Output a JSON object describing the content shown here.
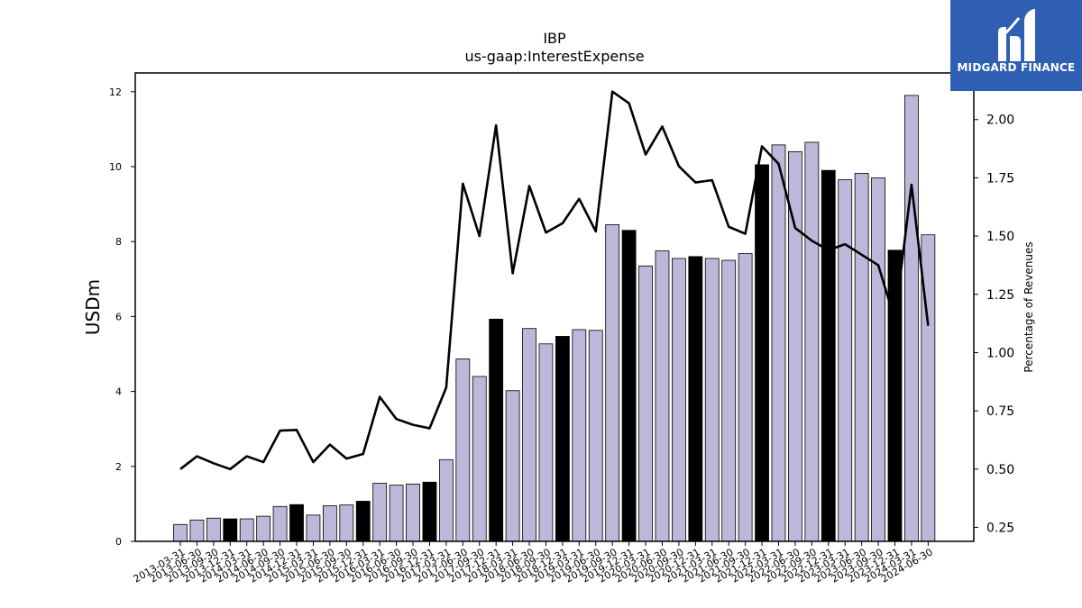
{
  "chart_data": {
    "type": "bar",
    "title": "IBP",
    "subtitle": "us-gaap:InterestExpense",
    "ylabel": "USDm",
    "y2label": "Percentage of Revenues",
    "ylim": [
      0,
      12.5
    ],
    "y2lim": [
      0.19,
      2.2
    ],
    "yticks": [
      0,
      2,
      4,
      6,
      8,
      10,
      12
    ],
    "y2ticks": [
      "0.25",
      "0.50",
      "0.75",
      "1.00",
      "1.25",
      "1.50",
      "1.75",
      "2.00"
    ],
    "grid": false,
    "bar_color": "#bcb8d9",
    "highlight_color": "#000000",
    "line_color": "#000000",
    "categories": [
      "2013-03-31",
      "2013-06-30",
      "2013-09-30",
      "2013-12-31",
      "2014-03-31",
      "2014-06-30",
      "2014-09-30",
      "2014-12-31",
      "2015-03-31",
      "2015-06-30",
      "2015-09-30",
      "2015-12-31",
      "2016-03-31",
      "2016-06-30",
      "2016-09-30",
      "2016-12-31",
      "2017-03-31",
      "2017-06-30",
      "2017-09-30",
      "2017-12-31",
      "2018-03-31",
      "2018-06-30",
      "2018-09-30",
      "2018-12-31",
      "2019-03-31",
      "2019-06-30",
      "2019-09-30",
      "2019-12-31",
      "2020-03-31",
      "2020-06-30",
      "2020-09-30",
      "2020-12-31",
      "2021-03-31",
      "2021-06-30",
      "2021-09-30",
      "2021-12-31",
      "2022-03-31",
      "2022-06-30",
      "2022-09-30",
      "2022-12-31",
      "2023-03-31",
      "2023-06-30",
      "2023-09-30",
      "2023-12-31",
      "2024-03-31",
      "2024-06-30"
    ],
    "series": [
      {
        "type": "bar",
        "values": [
          0.45,
          0.57,
          0.62,
          0.6,
          0.6,
          0.67,
          0.93,
          0.98,
          0.7,
          0.95,
          0.97,
          1.07,
          1.55,
          1.5,
          1.53,
          1.58,
          2.18,
          4.87,
          4.4,
          5.93,
          4.02,
          5.68,
          5.27,
          5.47,
          5.65,
          5.63,
          8.45,
          8.3,
          7.35,
          7.75,
          7.55,
          7.6,
          7.55,
          7.5,
          7.68,
          10.05,
          10.58,
          10.4,
          10.65,
          9.9,
          9.65,
          9.82,
          9.7,
          7.77,
          11.9,
          8.18
        ],
        "highlighted": [
          false,
          false,
          false,
          true,
          false,
          false,
          false,
          true,
          false,
          false,
          false,
          true,
          false,
          false,
          false,
          true,
          false,
          false,
          false,
          true,
          false,
          false,
          false,
          true,
          false,
          false,
          false,
          true,
          false,
          false,
          false,
          true,
          false,
          false,
          false,
          true,
          false,
          false,
          false,
          true,
          false,
          false,
          false,
          true,
          false,
          false
        ]
      },
      {
        "type": "line",
        "axis": "right",
        "values": [
          0.5,
          0.555,
          0.525,
          0.5,
          0.555,
          0.53,
          0.665,
          0.668,
          0.53,
          0.605,
          0.545,
          0.565,
          0.81,
          0.715,
          0.69,
          0.675,
          0.85,
          1.725,
          1.5,
          1.975,
          1.34,
          1.715,
          1.515,
          1.555,
          1.66,
          1.52,
          2.12,
          2.07,
          1.85,
          1.97,
          1.8,
          1.73,
          1.74,
          1.54,
          1.51,
          1.885,
          1.81,
          1.535,
          1.48,
          1.44,
          1.465,
          1.42,
          1.375,
          1.14,
          1.72,
          1.115
        ]
      }
    ]
  },
  "logo": {
    "text": "MIDGARD FINANCE"
  }
}
